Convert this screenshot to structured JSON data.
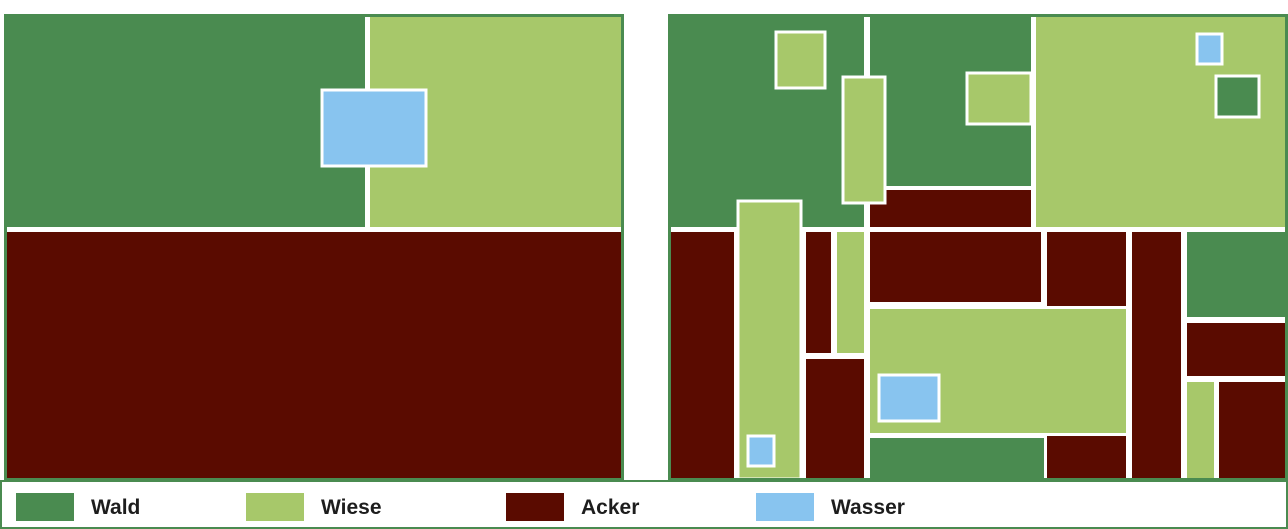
{
  "colors": {
    "wald": "#4a8b50",
    "wiese": "#a7c86a",
    "acker": "#5a0b00",
    "wasser": "#88c4ef",
    "border": "#4a8b50",
    "gap": "#ffffff"
  },
  "legend": [
    {
      "key": "wald",
      "label": "Wald"
    },
    {
      "key": "wiese",
      "label": "Wiese"
    },
    {
      "key": "acker",
      "label": "Acker"
    },
    {
      "key": "wasser",
      "label": "Wasser"
    }
  ]
}
